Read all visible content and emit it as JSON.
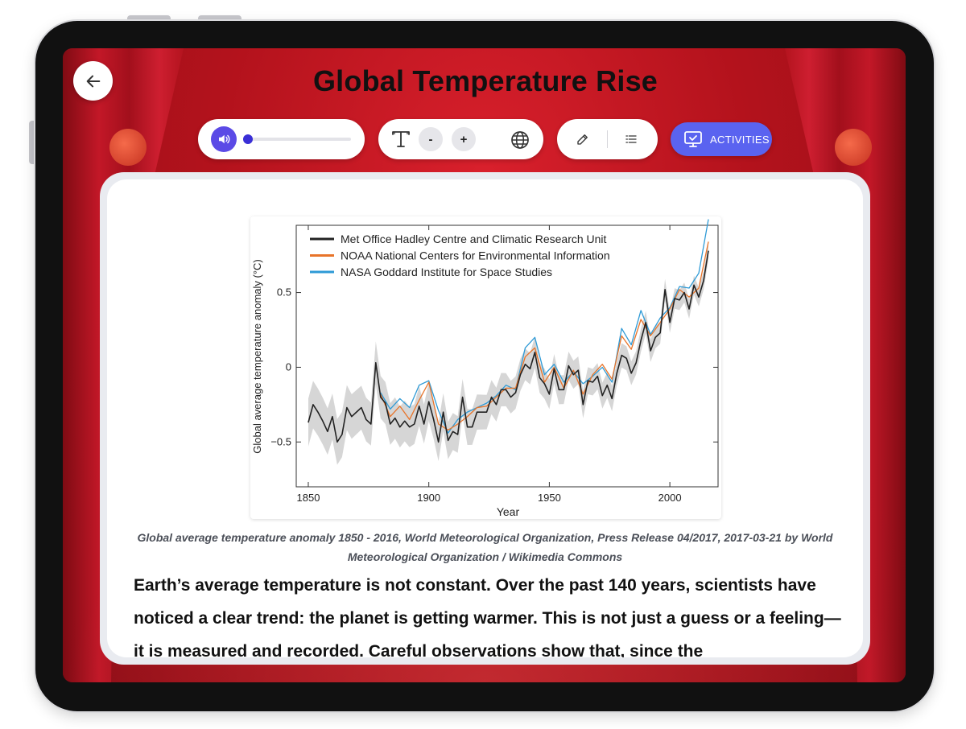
{
  "page": {
    "title": "Global Temperature Rise"
  },
  "toolbar": {
    "activities_label": "ACTIVITIES",
    "decrease_label": "-",
    "increase_label": "+",
    "audio_progress": 0
  },
  "icons": {
    "back": "arrow-left-icon",
    "audio": "speaker-icon",
    "text_size": "text-size-icon",
    "language": "globe-icon",
    "highlight": "pen-icon",
    "outline": "list-icon",
    "activities": "monitor-check-icon"
  },
  "colors": {
    "accent": "#5b4ae6",
    "activities_button": "#5a63f0",
    "background_red": "#b3121c"
  },
  "content": {
    "caption": "Global average temperature anomaly 1850 - 2016, World Meteorological Organization, Press Release 04/2017, 2017-03-21 by World Meteorological Organization / Wikimedia Commons",
    "paragraph": "Earth’s average temperature is not constant. Over the past 140 years, scientists have noticed a clear trend: the planet is getting warmer. This is not just a guess or a feeling—it is measured and recorded. Careful observations show that, since the"
  },
  "chart_data": {
    "type": "line",
    "title": "",
    "xlabel": "Year",
    "ylabel": "Global average temperature anomaly (°C)",
    "xlim": [
      1845,
      2020
    ],
    "ylim": [
      -0.8,
      0.95
    ],
    "xticks": [
      1850,
      1900,
      1950,
      2000
    ],
    "yticks": [
      -0.5,
      0,
      0.5
    ],
    "ytick_labels": [
      "−0.5",
      "0",
      "0.5"
    ],
    "legend_position": "top-left",
    "grid": false,
    "uncertainty_band": true,
    "series": [
      {
        "name": "Met Office Hadley Centre and Climatic Research Unit",
        "color": "#222222",
        "x": [
          1850,
          1852,
          1854,
          1856,
          1858,
          1860,
          1862,
          1864,
          1866,
          1868,
          1870,
          1872,
          1874,
          1876,
          1878,
          1880,
          1882,
          1884,
          1886,
          1888,
          1890,
          1892,
          1894,
          1896,
          1898,
          1900,
          1902,
          1904,
          1906,
          1908,
          1910,
          1912,
          1914,
          1916,
          1918,
          1920,
          1922,
          1924,
          1926,
          1928,
          1930,
          1932,
          1934,
          1936,
          1938,
          1940,
          1942,
          1944,
          1946,
          1948,
          1950,
          1952,
          1954,
          1956,
          1958,
          1960,
          1962,
          1964,
          1966,
          1968,
          1970,
          1972,
          1974,
          1976,
          1978,
          1980,
          1982,
          1984,
          1986,
          1988,
          1990,
          1992,
          1994,
          1996,
          1998,
          2000,
          2002,
          2004,
          2006,
          2008,
          2010,
          2012,
          2014,
          2016
        ],
        "values": [
          -0.37,
          -0.25,
          -0.3,
          -0.36,
          -0.43,
          -0.33,
          -0.5,
          -0.45,
          -0.27,
          -0.33,
          -0.3,
          -0.27,
          -0.35,
          -0.38,
          0.03,
          -0.2,
          -0.24,
          -0.38,
          -0.34,
          -0.4,
          -0.36,
          -0.4,
          -0.38,
          -0.26,
          -0.38,
          -0.23,
          -0.35,
          -0.5,
          -0.3,
          -0.49,
          -0.43,
          -0.45,
          -0.2,
          -0.4,
          -0.4,
          -0.3,
          -0.3,
          -0.3,
          -0.2,
          -0.25,
          -0.15,
          -0.15,
          -0.2,
          -0.17,
          -0.05,
          0.02,
          -0.01,
          0.1,
          -0.07,
          -0.11,
          -0.18,
          -0.01,
          -0.15,
          -0.15,
          0.01,
          -0.05,
          -0.02,
          -0.25,
          -0.09,
          -0.1,
          -0.06,
          -0.19,
          -0.12,
          -0.21,
          -0.04,
          0.08,
          0.06,
          -0.04,
          0.03,
          0.18,
          0.3,
          0.11,
          0.2,
          0.23,
          0.52,
          0.3,
          0.46,
          0.45,
          0.5,
          0.39,
          0.55,
          0.47,
          0.58,
          0.78
        ]
      },
      {
        "name": "NOAA National Centers for Environmental Information",
        "color": "#e8742a",
        "x": [
          1880,
          1884,
          1888,
          1892,
          1896,
          1900,
          1904,
          1908,
          1912,
          1916,
          1920,
          1924,
          1928,
          1932,
          1936,
          1940,
          1944,
          1948,
          1952,
          1956,
          1960,
          1964,
          1968,
          1972,
          1976,
          1980,
          1984,
          1988,
          1992,
          1996,
          2000,
          2004,
          2008,
          2012,
          2016
        ],
        "values": [
          -0.18,
          -0.33,
          -0.26,
          -0.35,
          -0.22,
          -0.1,
          -0.38,
          -0.42,
          -0.38,
          -0.33,
          -0.27,
          -0.26,
          -0.2,
          -0.14,
          -0.14,
          0.07,
          0.13,
          -0.1,
          0.0,
          -0.14,
          -0.02,
          -0.18,
          -0.05,
          0.02,
          -0.08,
          0.21,
          0.12,
          0.32,
          0.21,
          0.3,
          0.39,
          0.52,
          0.47,
          0.53,
          0.84
        ]
      },
      {
        "name": "NASA Goddard Institute for Space Studies",
        "color": "#2e9ad6",
        "x": [
          1880,
          1884,
          1888,
          1892,
          1896,
          1900,
          1904,
          1908,
          1912,
          1916,
          1920,
          1924,
          1928,
          1932,
          1936,
          1940,
          1944,
          1948,
          1952,
          1956,
          1960,
          1964,
          1968,
          1972,
          1976,
          1980,
          1984,
          1988,
          1992,
          1996,
          2000,
          2004,
          2008,
          2012,
          2016
        ],
        "values": [
          -0.17,
          -0.28,
          -0.21,
          -0.27,
          -0.12,
          -0.09,
          -0.29,
          -0.44,
          -0.35,
          -0.3,
          -0.27,
          -0.24,
          -0.19,
          -0.12,
          -0.15,
          0.13,
          0.2,
          -0.05,
          0.02,
          -0.1,
          -0.03,
          -0.11,
          -0.06,
          0.0,
          -0.1,
          0.26,
          0.15,
          0.38,
          0.22,
          0.33,
          0.4,
          0.54,
          0.53,
          0.63,
          0.99
        ]
      }
    ]
  }
}
